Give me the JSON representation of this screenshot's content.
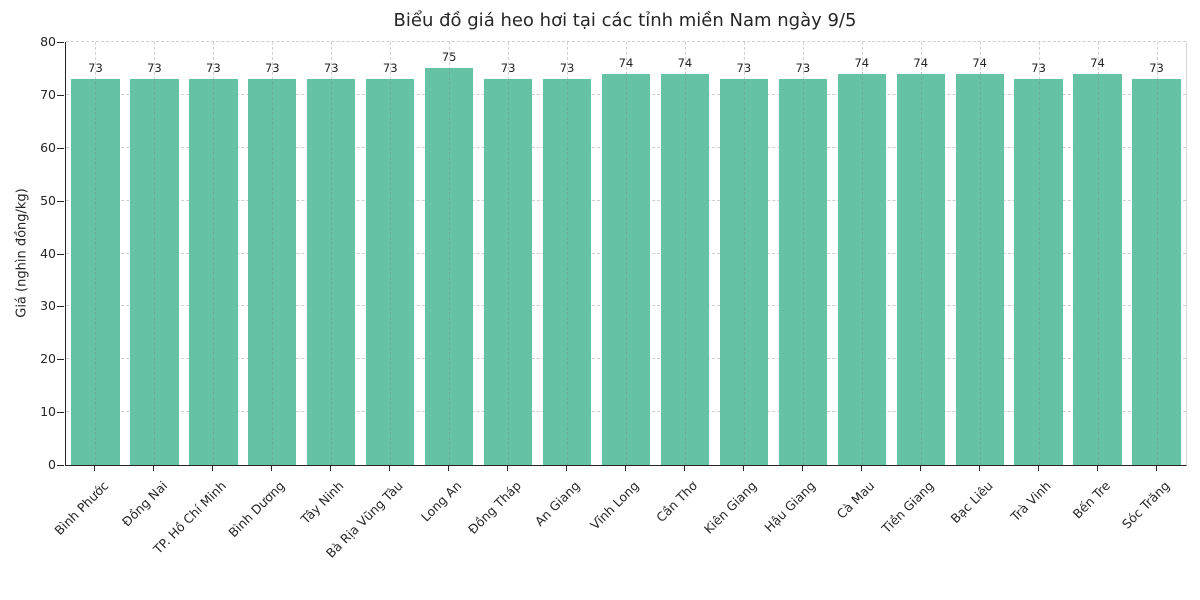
{
  "chart_data": {
    "type": "bar",
    "title": "Biểu đồ giá heo hơi tại các tỉnh miền Nam ngày 9/5",
    "xlabel": "",
    "ylabel": "Giá (nghìn đồng/kg)",
    "ylim": [
      0,
      80
    ],
    "yticks": [
      0,
      10,
      20,
      30,
      40,
      50,
      60,
      70,
      80
    ],
    "grid": "dashed-horizontal-and-vertical",
    "legend": "none",
    "bar_color": "#66c2a5",
    "categories": [
      "Bình Phước",
      "Đồng Nai",
      "TP. Hồ Chí Minh",
      "Bình Dương",
      "Tây Ninh",
      "Bà Rịa Vũng Tàu",
      "Long An",
      "Đồng Tháp",
      "An Giang",
      "Vĩnh Long",
      "Cần Thơ",
      "Kiên Giang",
      "Hậu Giang",
      "Cà Mau",
      "Tiền Giang",
      "Bạc Liêu",
      "Trà Vinh",
      "Bến Tre",
      "Sóc Trăng"
    ],
    "values": [
      73,
      73,
      73,
      73,
      73,
      73,
      75,
      73,
      73,
      74,
      74,
      73,
      73,
      74,
      74,
      74,
      73,
      74,
      73
    ]
  }
}
